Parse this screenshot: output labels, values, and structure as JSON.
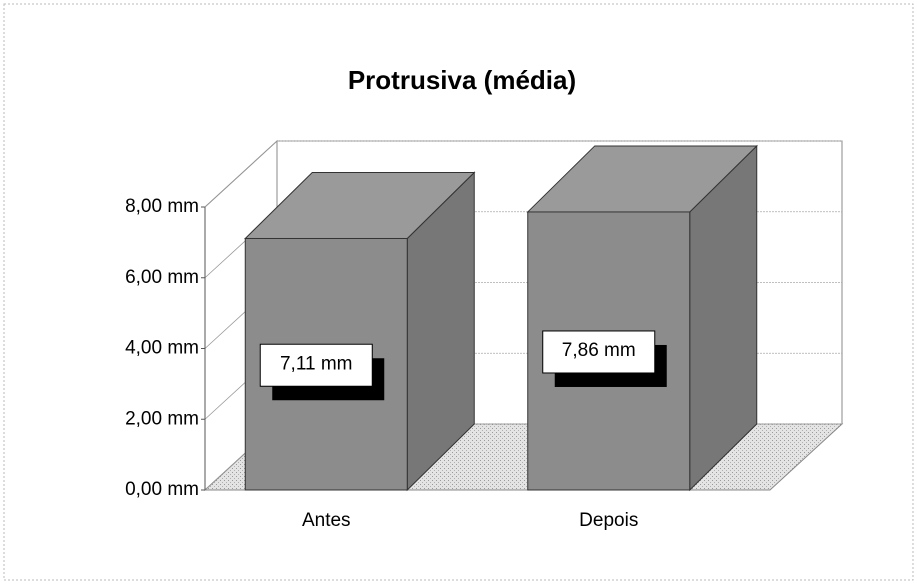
{
  "chart_data": {
    "type": "bar3d",
    "title": "Protrusiva (média)",
    "categories": [
      "Antes",
      "Depois"
    ],
    "values": [
      7.11,
      7.86
    ],
    "value_labels": [
      "7,11 mm",
      "7,86 mm"
    ],
    "color": "#8c8c8c",
    "ylim": [
      0,
      8
    ],
    "yticks": [
      {
        "value": 0,
        "label": "0,00 mm"
      },
      {
        "value": 2,
        "label": "2,00 mm"
      },
      {
        "value": 4,
        "label": "4,00 mm"
      },
      {
        "value": 6,
        "label": "6,00 mm"
      },
      {
        "value": 8,
        "label": "8,00 mm"
      }
    ],
    "grid": true
  }
}
